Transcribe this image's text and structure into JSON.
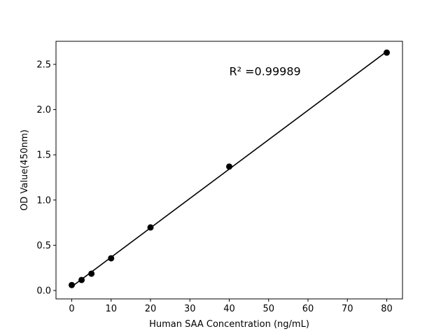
{
  "chart_data": {
    "type": "scatter",
    "title": "",
    "xlabel": "Human SAA Concentration (ng/mL)",
    "ylabel": "OD Value(450nm)",
    "xlim": [
      -4,
      84
    ],
    "ylim": [
      -0.093,
      2.755
    ],
    "xticks": [
      0,
      10,
      20,
      30,
      40,
      50,
      60,
      70,
      80
    ],
    "yticks": [
      0.0,
      0.5,
      1.0,
      1.5,
      2.0,
      2.5
    ],
    "ytick_labels": [
      "0.0",
      "0.5",
      "1.0",
      "1.5",
      "2.0",
      "2.5"
    ],
    "grid": false,
    "points": {
      "x": [
        0,
        2.5,
        5,
        10,
        20,
        40,
        80
      ],
      "y": [
        0.06,
        0.116,
        0.186,
        0.356,
        0.697,
        1.37,
        2.63
      ]
    },
    "fit_line": "linear",
    "annotation": "R² =0.99989",
    "annotation_pos": [
      40,
      2.38
    ],
    "color": "#000000"
  }
}
